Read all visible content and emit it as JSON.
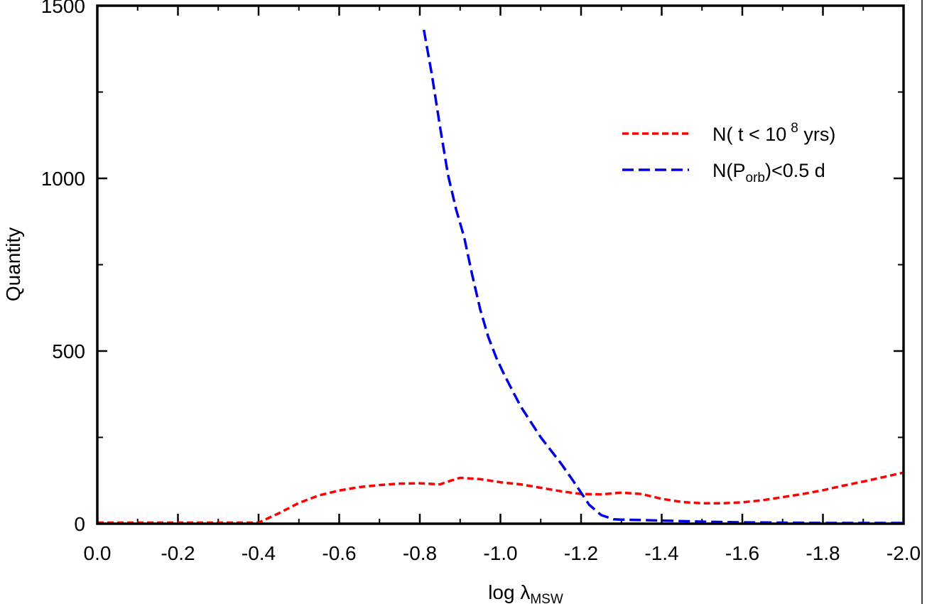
{
  "chart_data": {
    "type": "line",
    "title": "",
    "xlabel": {
      "main": "log λ",
      "sub": "MSW"
    },
    "ylabel": "Quantity",
    "xlim": [
      0.0,
      -2.0
    ],
    "ylim": [
      0,
      1500
    ],
    "x_ticks": [
      0.0,
      -0.2,
      -0.4,
      -0.6,
      -0.8,
      -1.0,
      -1.2,
      -1.4,
      -1.6,
      -1.8,
      -2.0
    ],
    "x_tick_labels": [
      "0.0",
      "-0.2",
      "-0.4",
      "-0.6",
      "-0.8",
      "-1.0",
      "-1.2",
      "-1.4",
      "-1.6",
      "-1.8",
      "-2.0"
    ],
    "y_ticks": [
      0,
      500,
      1000,
      1500
    ],
    "y_tick_labels": [
      "0",
      "500",
      "1000",
      "1500"
    ],
    "y_minor_ticks": [
      250,
      750,
      1250
    ],
    "x_minor_ticks": [
      -0.1,
      -0.3,
      -0.5,
      -0.7,
      -0.9,
      -1.1,
      -1.3,
      -1.5,
      -1.7,
      -1.9
    ],
    "grid": false,
    "legend_position": "top-right",
    "series": [
      {
        "legend": {
          "prefix": "N( t < 10",
          "sup": "8",
          "suffix": " yrs)"
        },
        "color": "#ff0000",
        "dash": "short-dash",
        "x": [
          0.0,
          -0.1,
          -0.2,
          -0.3,
          -0.4,
          -0.45,
          -0.5,
          -0.55,
          -0.6,
          -0.65,
          -0.7,
          -0.75,
          -0.8,
          -0.85,
          -0.88,
          -0.9,
          -0.95,
          -1.0,
          -1.05,
          -1.1,
          -1.15,
          -1.2,
          -1.25,
          -1.3,
          -1.35,
          -1.4,
          -1.45,
          -1.5,
          -1.55,
          -1.6,
          -1.65,
          -1.7,
          -1.75,
          -1.8,
          -1.85,
          -1.9,
          -1.95,
          -2.0
        ],
        "y": [
          3,
          3,
          3,
          3,
          3,
          30,
          60,
          82,
          96,
          106,
          112,
          116,
          117,
          114,
          126,
          133,
          129,
          120,
          114,
          104,
          94,
          86,
          85,
          90,
          86,
          72,
          63,
          59,
          59,
          62,
          68,
          77,
          86,
          97,
          110,
          122,
          135,
          148
        ]
      },
      {
        "legend": {
          "prefix": "N(P",
          "sub": "orb",
          "suffix": ")<0.5 d"
        },
        "color": "#0000e0",
        "dash": "long-dash",
        "x": [
          -0.81,
          -0.83,
          -0.85,
          -0.87,
          -0.89,
          -0.91,
          -0.93,
          -0.95,
          -0.97,
          -0.99,
          -1.01,
          -1.05,
          -1.1,
          -1.15,
          -1.18,
          -1.2,
          -1.22,
          -1.25,
          -1.28,
          -1.3,
          -1.4,
          -1.5,
          -1.6,
          -1.7,
          -1.8,
          -1.9,
          -2.0
        ],
        "y": [
          1430,
          1300,
          1150,
          1010,
          910,
          830,
          720,
          620,
          540,
          480,
          430,
          340,
          250,
          175,
          125,
          90,
          55,
          25,
          13,
          12,
          9,
          6,
          4,
          3,
          2,
          2,
          2
        ]
      }
    ]
  }
}
